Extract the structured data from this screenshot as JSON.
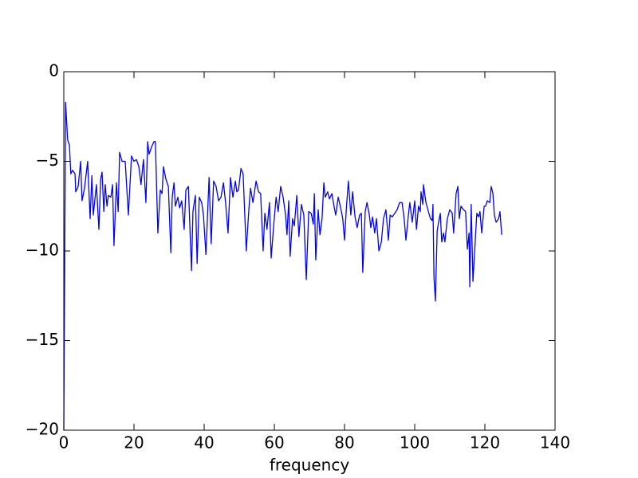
{
  "chart_data": {
    "type": "line",
    "xlabel": "frequency",
    "series": [
      {
        "color": "#0000ff",
        "x": [
          0,
          0.5,
          1.1,
          1.6,
          2.0,
          2.5,
          3.2,
          3.4,
          4.1,
          4.8,
          5.2,
          5.9,
          6.8,
          7.5,
          8.0,
          8.4,
          9.3,
          10.0,
          10.5,
          10.9,
          11.4,
          11.8,
          12.3,
          12.7,
          13.4,
          13.9,
          14.3,
          15.0,
          15.5,
          15.9,
          16.6,
          17.5,
          18.4,
          19.3,
          20.0,
          20.7,
          21.4,
          22.0,
          22.7,
          23.4,
          23.9,
          24.3,
          25.0,
          25.7,
          26.1,
          26.8,
          27.5,
          28.0,
          28.4,
          29.1,
          29.8,
          30.5,
          30.9,
          31.4,
          31.8,
          32.5,
          33.0,
          33.6,
          34.3,
          34.8,
          35.5,
          36.4,
          36.8,
          37.5,
          38.0,
          38.6,
          39.3,
          39.8,
          40.5,
          41.4,
          42.0,
          42.7,
          43.4,
          44.1,
          44.8,
          45.5,
          46.1,
          46.8,
          47.5,
          48.2,
          48.9,
          49.3,
          49.8,
          50.5,
          51.1,
          52.0,
          52.7,
          53.2,
          53.9,
          54.8,
          55.5,
          56.1,
          56.8,
          57.3,
          57.9,
          58.6,
          59.1,
          59.8,
          60.5,
          61.1,
          61.8,
          62.5,
          63.2,
          63.6,
          64.1,
          64.5,
          65.2,
          65.7,
          66.4,
          67.0,
          67.7,
          68.4,
          69.1,
          69.8,
          70.5,
          71.1,
          71.4,
          71.8,
          72.5,
          73.0,
          73.6,
          74.1,
          74.5,
          75.2,
          75.7,
          76.4,
          77.0,
          77.5,
          78.2,
          78.9,
          79.5,
          80.0,
          80.5,
          81.1,
          81.8,
          82.3,
          83.0,
          83.6,
          84.3,
          84.8,
          85.2,
          85.9,
          86.4,
          87.0,
          87.5,
          88.0,
          88.6,
          89.1,
          89.8,
          90.5,
          91.1,
          91.8,
          92.5,
          93.0,
          93.6,
          94.3,
          95.0,
          95.7,
          96.4,
          97.0,
          97.5,
          98.2,
          98.6,
          99.3,
          100.0,
          100.5,
          101.1,
          101.6,
          101.8,
          102.3,
          102.5,
          103.2,
          103.9,
          104.5,
          105.0,
          105.2,
          105.5,
          105.9,
          106.4,
          106.8,
          107.3,
          107.7,
          108.2,
          108.6,
          109.3,
          110.0,
          110.7,
          111.1,
          111.8,
          112.3,
          112.7,
          113.2,
          113.9,
          114.5,
          115.0,
          115.5,
          115.7,
          116.1,
          116.6,
          117.3,
          117.7,
          118.2,
          118.6,
          119.1,
          119.8,
          120.2,
          120.7,
          121.4,
          121.8,
          122.3,
          122.7,
          123.2,
          123.9,
          124.3,
          124.8
        ],
        "values": [
          -20,
          -1.7,
          -3.8,
          -4.1,
          -5.7,
          -5.5,
          -5.7,
          -6.7,
          -6.4,
          -5.0,
          -7.2,
          -6.5,
          -5.0,
          -8.2,
          -5.8,
          -8.0,
          -6.3,
          -8.8,
          -6.0,
          -5.6,
          -7.8,
          -6.3,
          -7.5,
          -6.9,
          -7.0,
          -6.3,
          -9.7,
          -6.2,
          -7.8,
          -4.5,
          -5.0,
          -5.0,
          -8.0,
          -4.7,
          -5.0,
          -4.9,
          -5.3,
          -6.3,
          -4.9,
          -7.3,
          -3.9,
          -4.6,
          -4.2,
          -3.9,
          -3.9,
          -9.0,
          -6.6,
          -6.8,
          -5.3,
          -6.0,
          -6.4,
          -10.1,
          -7.0,
          -6.2,
          -7.5,
          -7.0,
          -7.6,
          -7.2,
          -8.8,
          -6.6,
          -6.4,
          -11.1,
          -7.8,
          -6.9,
          -10.7,
          -7.0,
          -7.3,
          -8.0,
          -10.2,
          -5.9,
          -9.6,
          -6.1,
          -6.4,
          -7.2,
          -7.0,
          -6.2,
          -7.3,
          -9.0,
          -5.9,
          -7.0,
          -6.1,
          -6.7,
          -6.6,
          -5.4,
          -5.7,
          -10.0,
          -7.8,
          -6.5,
          -7.3,
          -6.1,
          -6.7,
          -6.8,
          -10.0,
          -7.9,
          -8.8,
          -7.3,
          -10.4,
          -8.6,
          -7.0,
          -7.8,
          -6.4,
          -7.0,
          -8.0,
          -9.1,
          -7.2,
          -10.3,
          -8.2,
          -8.6,
          -6.9,
          -9.2,
          -7.4,
          -8.0,
          -11.6,
          -7.8,
          -7.9,
          -8.5,
          -6.8,
          -10.5,
          -7.7,
          -9.1,
          -8.2,
          -6.2,
          -7.0,
          -6.7,
          -7.1,
          -6.8,
          -7.5,
          -8.0,
          -7.0,
          -7.6,
          -8.2,
          -9.4,
          -7.7,
          -6.1,
          -8.0,
          -6.7,
          -8.1,
          -8.7,
          -8.0,
          -7.9,
          -11.2,
          -7.8,
          -7.3,
          -7.9,
          -8.7,
          -8.1,
          -9.0,
          -8.2,
          -10.0,
          -9.5,
          -8.2,
          -7.7,
          -9.4,
          -8.0,
          -8.1,
          -7.9,
          -7.7,
          -7.3,
          -7.3,
          -8.2,
          -9.4,
          -8.0,
          -7.3,
          -8.4,
          -7.2,
          -8.8,
          -7.5,
          -7.8,
          -6.7,
          -7.4,
          -6.3,
          -7.3,
          -7.8,
          -8.2,
          -8.3,
          -7.4,
          -11.5,
          -12.8,
          -8.9,
          -8.4,
          -7.9,
          -9.5,
          -9.0,
          -9.5,
          -8.2,
          -7.7,
          -7.9,
          -9.0,
          -6.8,
          -6.4,
          -8.2,
          -7.5,
          -7.7,
          -7.8,
          -9.9,
          -9.0,
          -12.0,
          -7.4,
          -11.7,
          -9.3,
          -7.9,
          -8.1,
          -7.8,
          -9.0,
          -7.5,
          -7.5,
          -7.2,
          -7.3,
          -6.4,
          -6.8,
          -8.0,
          -8.4,
          -8.2,
          -7.8,
          -9.1
        ]
      }
    ],
    "xlim": [
      0,
      140
    ],
    "xticks": [
      0,
      20,
      40,
      60,
      80,
      100,
      120,
      140
    ],
    "ylim": [
      -20,
      0
    ],
    "yticks": [
      {
        "value": -20,
        "label": "−20"
      },
      {
        "value": -15,
        "label": "−15"
      },
      {
        "value": -10,
        "label": "−10"
      },
      {
        "value": -5,
        "label": "−5"
      },
      0
    ]
  }
}
